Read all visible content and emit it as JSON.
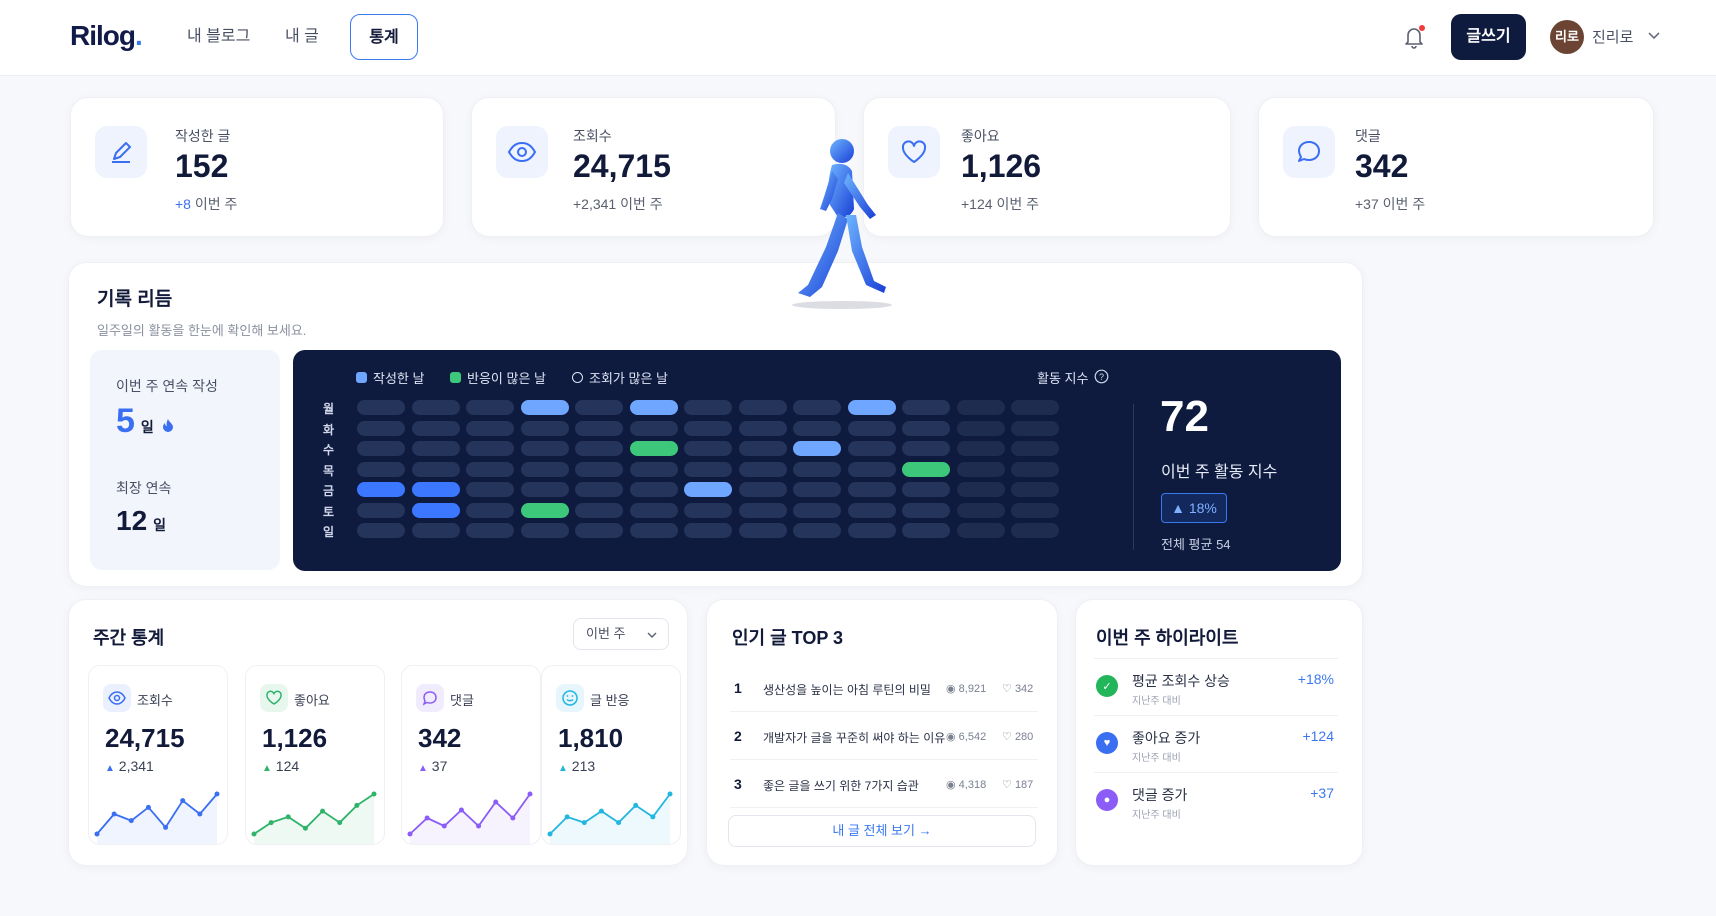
{
  "header": {
    "logo": "Rilog",
    "logo_dot": ".",
    "nav": [
      "내 블로그",
      "내 글",
      "통계"
    ],
    "write_label": "글쓰기",
    "avatar_text": "리로",
    "user_name": "진리로"
  },
  "stats": [
    {
      "label": "작성한 글",
      "value": "152",
      "delta_num": "+8",
      "delta_text": "이번 주"
    },
    {
      "label": "조회수",
      "value": "24,715",
      "delta_num": "+2,341",
      "delta_text": "이번 주"
    },
    {
      "label": "좋아요",
      "value": "1,126",
      "delta_num": "+124",
      "delta_text": "이번 주"
    },
    {
      "label": "댓글",
      "value": "342",
      "delta_num": "+37",
      "delta_text": "이번 주"
    }
  ],
  "rhythm": {
    "title": "기록 리듬",
    "subtitle": "일주일의 활동을 한눈에 확인해 보세요.",
    "streak_label": "이번 주 연속 작성",
    "streak_value": "5",
    "streak_unit": "일",
    "longest_label": "최장 연속",
    "longest_value": "12",
    "longest_unit": "일",
    "legend": [
      "작성한 날",
      "반응이 많은 날",
      "조회가 많은 날"
    ],
    "index_label": "활동 지수",
    "days": [
      "월",
      "화",
      "수",
      "목",
      "금",
      "토",
      "일"
    ],
    "grid": [
      [
        0,
        0,
        0,
        1,
        0,
        1,
        0,
        0,
        0,
        1,
        0,
        0,
        0
      ],
      [
        0,
        0,
        0,
        0,
        0,
        0,
        0,
        0,
        0,
        0,
        0,
        0,
        0
      ],
      [
        0,
        0,
        0,
        0,
        0,
        3,
        0,
        0,
        1,
        0,
        0,
        0,
        0
      ],
      [
        0,
        0,
        0,
        0,
        0,
        0,
        0,
        0,
        0,
        0,
        3,
        0,
        0
      ],
      [
        2,
        2,
        0,
        0,
        0,
        0,
        1,
        0,
        0,
        0,
        0,
        0,
        0
      ],
      [
        0,
        2,
        0,
        3,
        0,
        0,
        0,
        0,
        0,
        0,
        0,
        0,
        0
      ],
      [
        0,
        0,
        0,
        0,
        0,
        0,
        0,
        0,
        0,
        0,
        0,
        0,
        0
      ]
    ],
    "score": "72",
    "score_label": "이번 주 활동 지수",
    "score_change": "▲ 18%",
    "score_avg": "전체 평균 54"
  },
  "weekly": {
    "title": "주간 통계",
    "period": "이번 주",
    "items": [
      {
        "label": "조회수",
        "value": "24,715",
        "delta": "2,341",
        "color": "#3a6ff2",
        "spark": [
          2,
          5,
          4,
          6,
          3,
          7,
          5,
          8
        ]
      },
      {
        "label": "좋아요",
        "value": "1,126",
        "delta": "124",
        "color": "#2fb36b",
        "spark": [
          2,
          4,
          5,
          3,
          6,
          4,
          7,
          9
        ]
      },
      {
        "label": "댓글",
        "value": "342",
        "delta": "37",
        "color": "#8b5cf6",
        "spark": [
          3,
          5,
          4,
          6,
          4,
          7,
          5,
          8
        ]
      },
      {
        "label": "글 반응",
        "value": "1,810",
        "delta": "213",
        "color": "#22b6e0",
        "spark": [
          2,
          5,
          4,
          6,
          4,
          7,
          5,
          9
        ]
      }
    ]
  },
  "top": {
    "title": "인기 글 TOP 3",
    "posts": [
      {
        "rank": "1",
        "title": "생산성을 높이는 아침 루틴의 비밀",
        "views": "8,921",
        "likes": "342"
      },
      {
        "rank": "2",
        "title": "개발자가 글을 꾸준히 써야 하는 이유",
        "views": "6,542",
        "likes": "280"
      },
      {
        "rank": "3",
        "title": "좋은 글을 쓰기 위한 7가지 습관",
        "views": "4,318",
        "likes": "187"
      }
    ],
    "all_label": "내 글 전체 보기"
  },
  "highlights": {
    "title": "이번 주 하이라이트",
    "items": [
      {
        "title": "평균 조회수 상승",
        "sub": "지난주 대비",
        "value": "+18%",
        "color": "#22b55a"
      },
      {
        "title": "좋아요 증가",
        "sub": "지난주 대비",
        "value": "+124",
        "color": "#3a6ff2"
      },
      {
        "title": "댓글 증가",
        "sub": "지난주 대비",
        "value": "+37",
        "color": "#8b5cf6"
      }
    ]
  }
}
